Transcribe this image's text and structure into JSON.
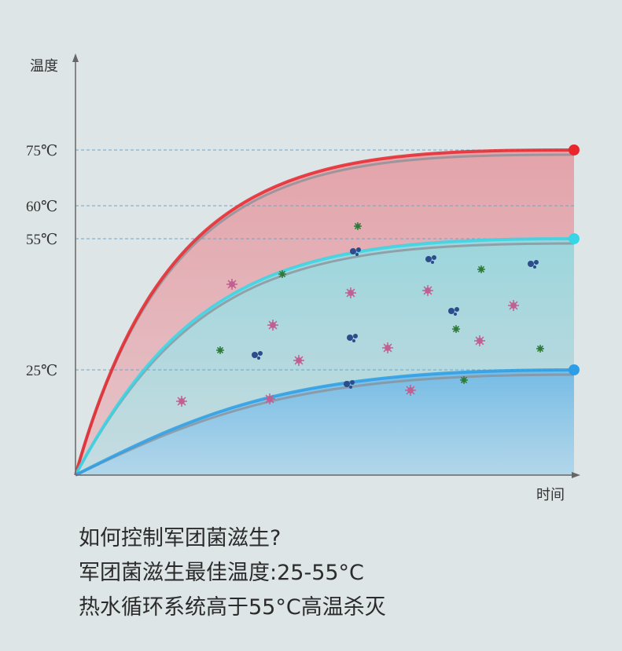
{
  "chart_data": {
    "type": "area",
    "ylabel": "温度",
    "xlabel": "时间",
    "ylim": [
      0,
      75
    ],
    "yticks": [
      {
        "value": 75,
        "label": "75℃"
      },
      {
        "value": 60,
        "label": "60℃"
      },
      {
        "value": 55,
        "label": "55℃"
      },
      {
        "value": 25,
        "label": "25℃"
      }
    ],
    "grid": "dashed lines at tick values",
    "series": [
      {
        "end_value": 75,
        "color": "#e8262b",
        "fill": "#e58d95"
      },
      {
        "end_value": 55,
        "color": "#36d6e6",
        "fill": "#97dfe4"
      },
      {
        "end_value": 25,
        "color": "#2c9de6",
        "fill": "#7fbfe8"
      }
    ],
    "decoration": "scattered bacteria icons between 25℃ and 55℃ curves"
  },
  "caption": {
    "line1": "如何控制军团菌滋生?",
    "line2": "军团菌滋生最佳温度:25-55°C",
    "line3": "热水循环系统高于55°C高温杀灭"
  }
}
